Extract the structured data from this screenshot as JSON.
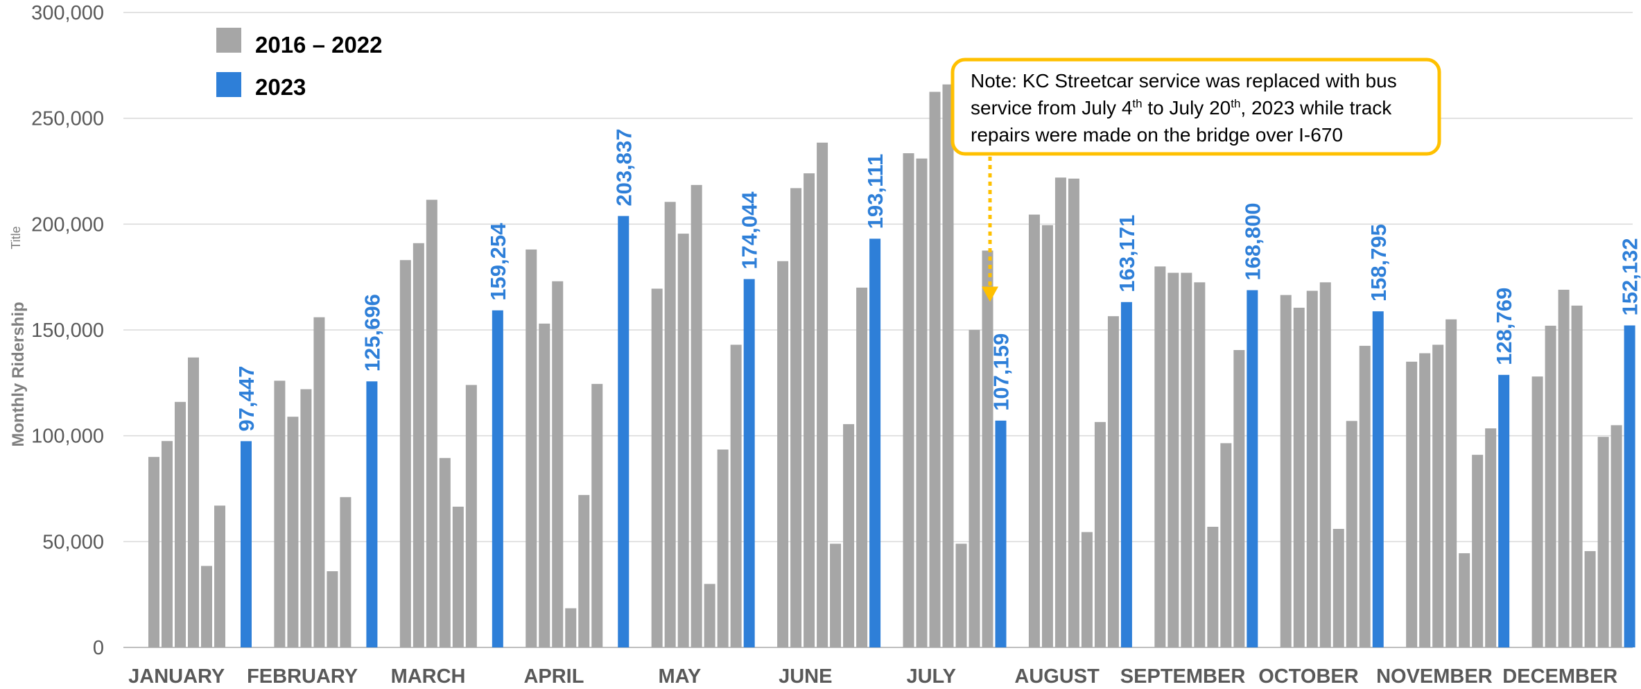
{
  "chart_data": {
    "type": "bar",
    "title": "",
    "xlabel": "",
    "ylabel": "Monthly Ridership",
    "ylabel_overlay": "Title",
    "ylim": [
      0,
      300000
    ],
    "yticks": [
      0,
      50000,
      100000,
      150000,
      200000,
      250000,
      300000
    ],
    "ytick_labels": [
      "0",
      "50,000",
      "100,000",
      "150,000",
      "200,000",
      "250,000",
      "300,000"
    ],
    "grid": true,
    "legend_position": "top-left",
    "categories": [
      "JANUARY",
      "FEBRUARY",
      "MARCH",
      "APRIL",
      "MAY",
      "JUNE",
      "JULY",
      "AUGUST",
      "SEPTEMBER",
      "OCTOBER",
      "NOVEMBER",
      "DECEMBER"
    ],
    "legend": [
      {
        "label": "2016 – 2022",
        "color": "#a6a6a6"
      },
      {
        "label": "2023",
        "color": "#2e7fd8"
      }
    ],
    "historical_years": [
      "2016",
      "2017",
      "2018",
      "2019",
      "2020",
      "2021",
      "2022"
    ],
    "historical_color": "#a6a6a6",
    "current_color": "#2e7fd8",
    "historical_values": [
      [
        90000,
        97500,
        116000,
        137000,
        38500,
        67000,
        null
      ],
      [
        126000,
        109000,
        122000,
        156000,
        36000,
        71000,
        null
      ],
      [
        183000,
        191000,
        211500,
        89500,
        66500,
        124000,
        null
      ],
      [
        188000,
        153000,
        173000,
        18500,
        72000,
        124500,
        null
      ],
      [
        169500,
        210500,
        195500,
        218500,
        30000,
        93500,
        143000
      ],
      [
        182500,
        217000,
        224000,
        238500,
        49000,
        105500,
        170000
      ],
      [
        233500,
        231000,
        262500,
        266000,
        49000,
        150000,
        187500
      ],
      [
        204500,
        199500,
        222000,
        221500,
        54500,
        106500,
        156500
      ],
      [
        180000,
        177000,
        177000,
        172500,
        57000,
        96500,
        140500
      ],
      [
        166500,
        160500,
        168500,
        172500,
        56000,
        107000,
        142500
      ],
      [
        135000,
        139000,
        143000,
        155000,
        44500,
        91000,
        103500
      ],
      [
        128000,
        152000,
        169000,
        161500,
        45500,
        99500,
        105000
      ]
    ],
    "series": [
      {
        "name": "2023",
        "values": [
          97447,
          125696,
          159254,
          203837,
          174044,
          193111,
          107159,
          163171,
          168800,
          158795,
          128769,
          152132
        ]
      }
    ],
    "data_labels": [
      "97,447",
      "125,696",
      "159,254",
      "203,837",
      "174,044",
      "193,111",
      "107,159",
      "163,171",
      "168,800",
      "158,795",
      "128,769",
      "152,132"
    ],
    "annotation": {
      "lines": [
        [
          "Note: KC Streetcar service was replaced with bus"
        ],
        [
          "service from July 4",
          "th",
          " to July 20",
          "th",
          ", 2023 while track"
        ],
        [
          "repairs were made on the bridge over I-670"
        ]
      ],
      "border_color": "#ffc000",
      "arrow_color": "#ffc000",
      "target_category": "JULY",
      "target_value": 160000
    }
  }
}
